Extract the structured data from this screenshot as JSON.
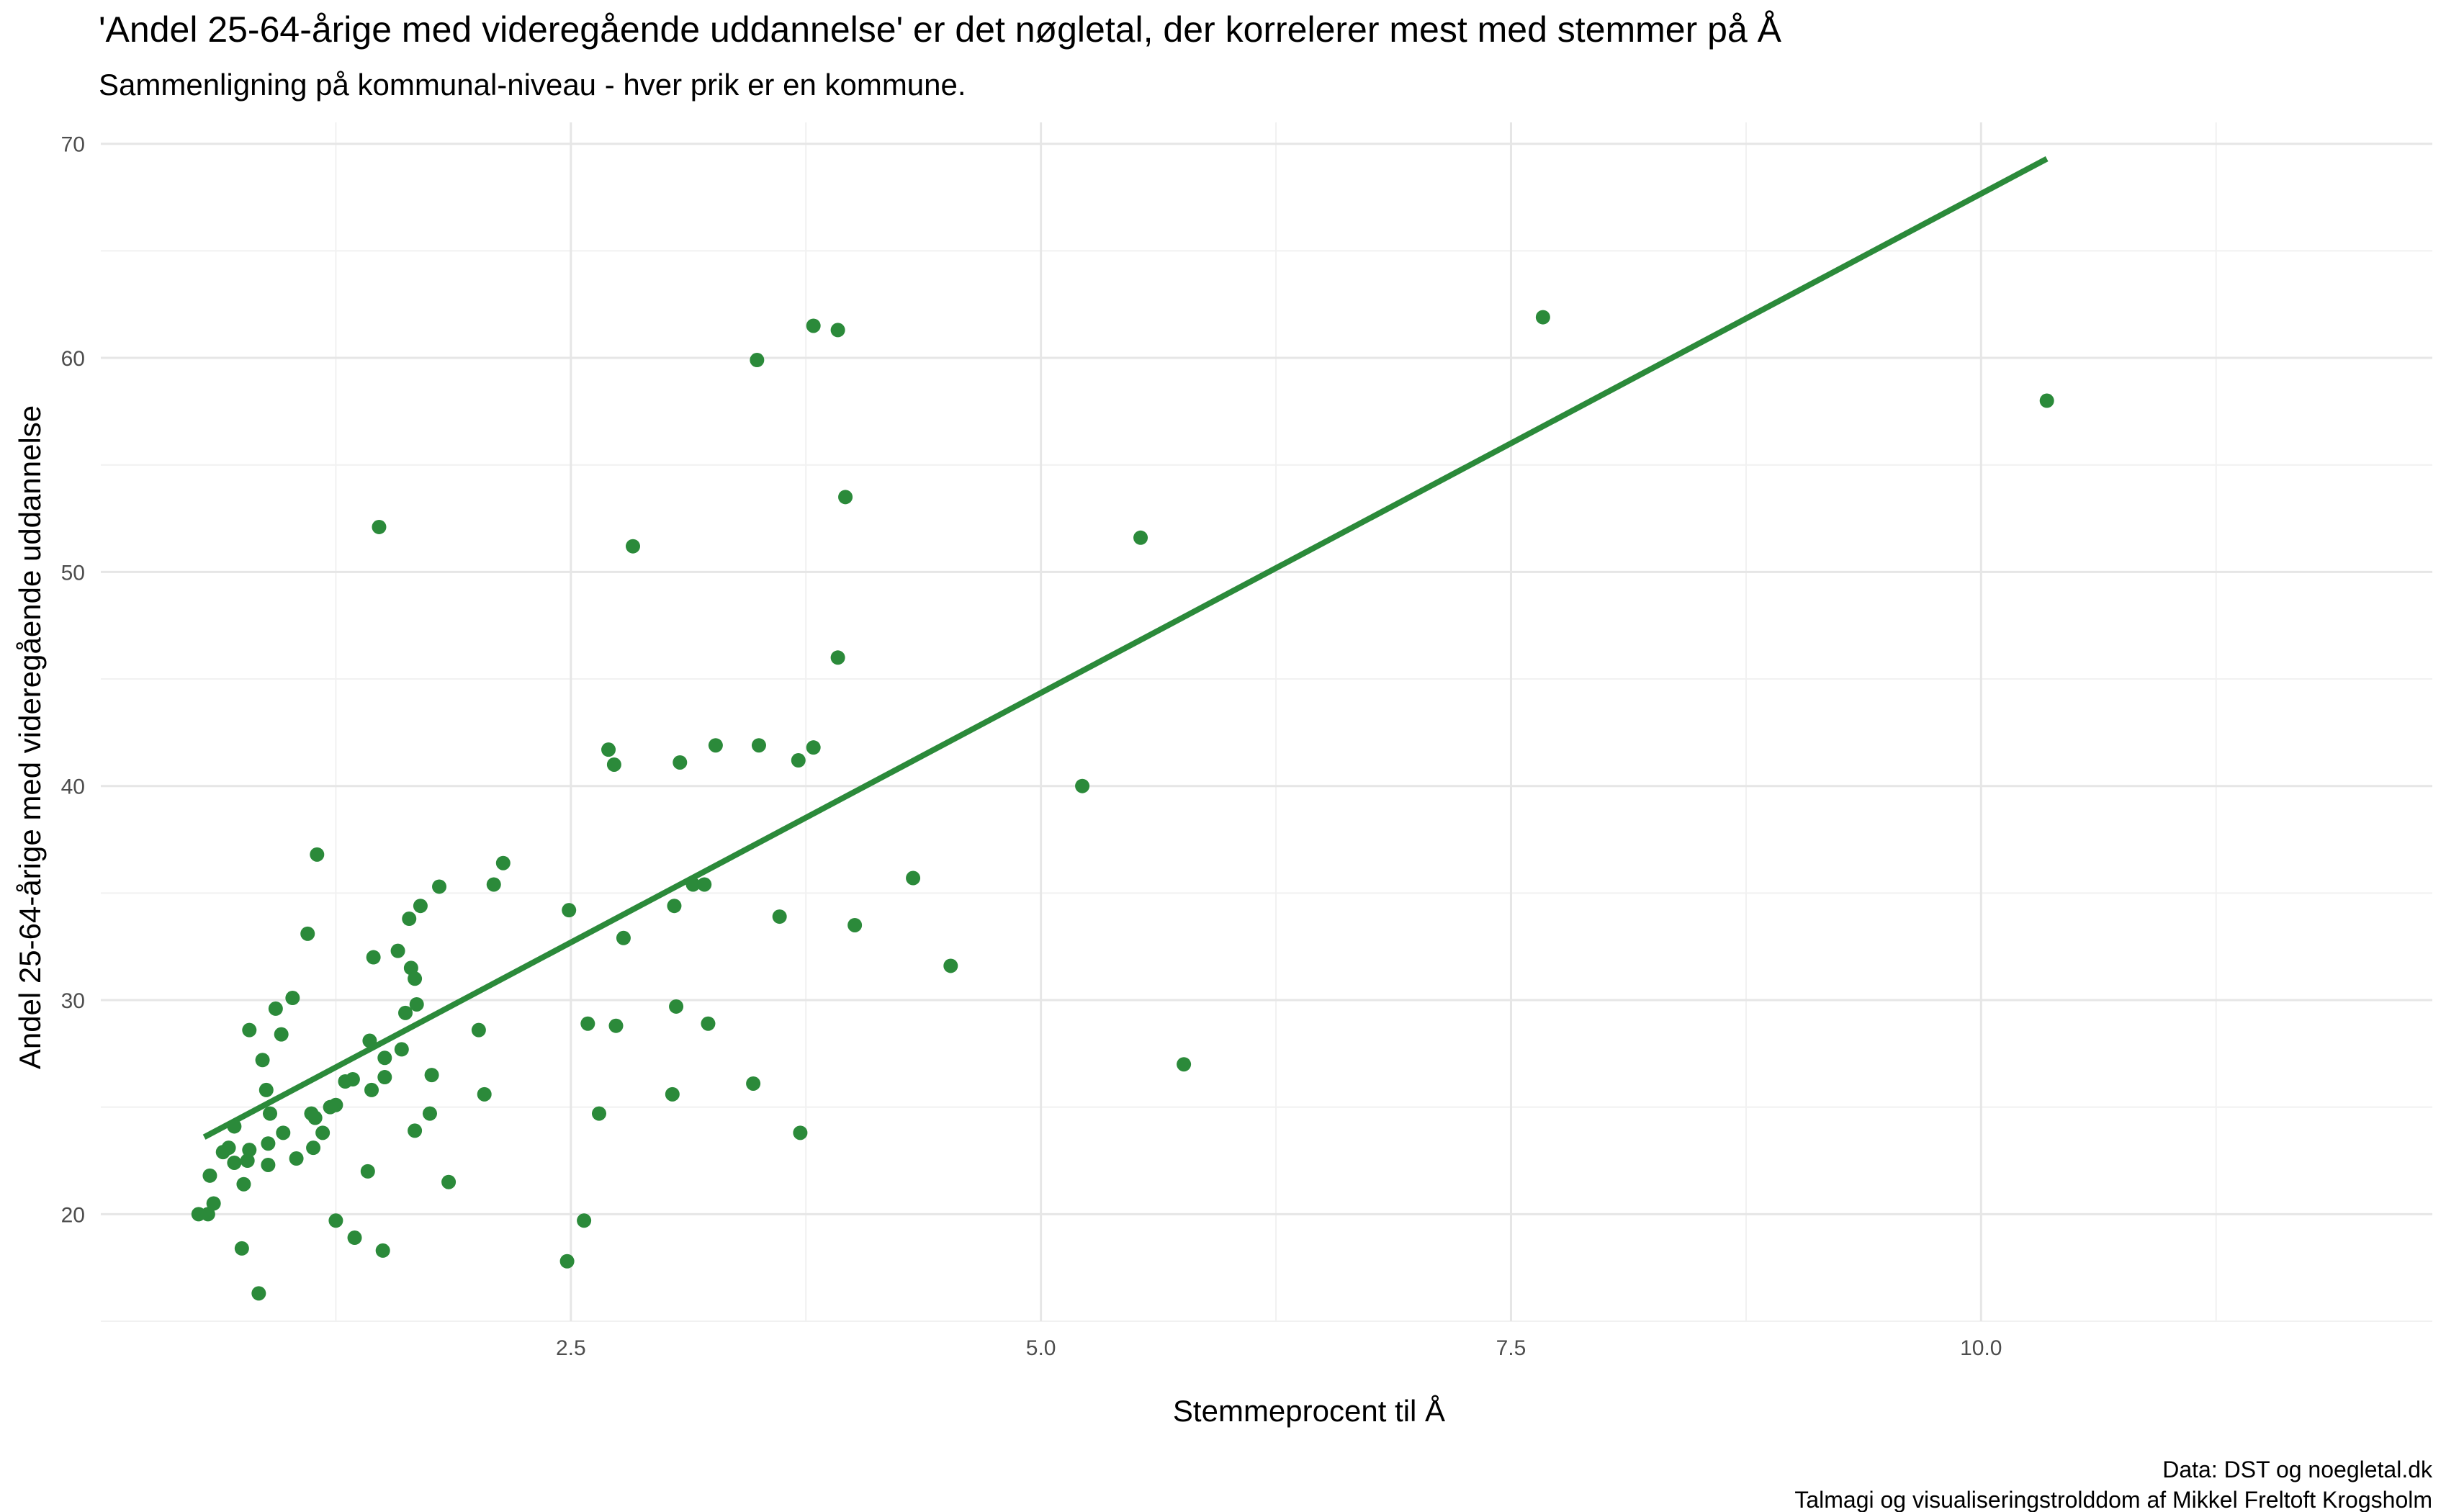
{
  "chart_data": {
    "type": "scatter",
    "title": "'Andel 25-64-årige med videregående uddannelse' er det nøgletal, der korrelerer mest med stemmer på Å",
    "subtitle": "Sammenligning på kommunal-niveau - hver prik er en kommune.",
    "xlabel": "Stemmeprocent til Å",
    "ylabel": "Andel 25-64-årige med videregående uddannelse",
    "caption": [
      "Data: DST og noegletal.dk",
      "Talmagi og visualiseringstrolddom af Mikkel Freltoft Krogsholm"
    ],
    "xlim": [
      0.0,
      12.4
    ],
    "ylim": [
      15,
      71
    ],
    "x_ticks": [
      {
        "value": 2.5,
        "label": "2.5"
      },
      {
        "value": 5.0,
        "label": "5.0"
      },
      {
        "value": 7.5,
        "label": "7.5"
      },
      {
        "value": 10.0,
        "label": "10.0"
      }
    ],
    "y_ticks": [
      {
        "value": 20,
        "label": "20"
      },
      {
        "value": 30,
        "label": "30"
      },
      {
        "value": 40,
        "label": "40"
      },
      {
        "value": 50,
        "label": "50"
      },
      {
        "value": 60,
        "label": "60"
      },
      {
        "value": 70,
        "label": "70"
      }
    ],
    "grid": true,
    "point_color": "#2b8a3a",
    "line_color": "#2b8a3a",
    "trend_line": [
      {
        "x": 0.55,
        "y": 23.6
      },
      {
        "x": 10.35,
        "y": 69.3
      }
    ],
    "points": [
      {
        "x": 0.52,
        "y": 20.0
      },
      {
        "x": 0.57,
        "y": 20.0
      },
      {
        "x": 0.6,
        "y": 20.5
      },
      {
        "x": 0.58,
        "y": 21.8
      },
      {
        "x": 0.65,
        "y": 22.9
      },
      {
        "x": 0.68,
        "y": 23.1
      },
      {
        "x": 0.71,
        "y": 22.4
      },
      {
        "x": 0.71,
        "y": 24.1
      },
      {
        "x": 0.76,
        "y": 21.4
      },
      {
        "x": 0.78,
        "y": 22.5
      },
      {
        "x": 0.79,
        "y": 23.0
      },
      {
        "x": 0.79,
        "y": 28.6
      },
      {
        "x": 0.75,
        "y": 18.4
      },
      {
        "x": 0.84,
        "y": 16.3
      },
      {
        "x": 0.86,
        "y": 27.2
      },
      {
        "x": 0.88,
        "y": 25.8
      },
      {
        "x": 0.89,
        "y": 22.3
      },
      {
        "x": 0.89,
        "y": 23.3
      },
      {
        "x": 0.9,
        "y": 24.7
      },
      {
        "x": 0.93,
        "y": 29.6
      },
      {
        "x": 0.96,
        "y": 28.4
      },
      {
        "x": 0.97,
        "y": 23.8
      },
      {
        "x": 1.02,
        "y": 30.1
      },
      {
        "x": 1.04,
        "y": 22.6
      },
      {
        "x": 1.1,
        "y": 33.1
      },
      {
        "x": 1.12,
        "y": 24.7
      },
      {
        "x": 1.13,
        "y": 23.1
      },
      {
        "x": 1.14,
        "y": 24.5
      },
      {
        "x": 1.15,
        "y": 36.8
      },
      {
        "x": 1.18,
        "y": 23.8
      },
      {
        "x": 1.22,
        "y": 25.0
      },
      {
        "x": 1.25,
        "y": 25.1
      },
      {
        "x": 1.25,
        "y": 19.7
      },
      {
        "x": 1.3,
        "y": 26.2
      },
      {
        "x": 1.34,
        "y": 26.3
      },
      {
        "x": 1.35,
        "y": 18.9
      },
      {
        "x": 1.42,
        "y": 22.0
      },
      {
        "x": 1.43,
        "y": 28.1
      },
      {
        "x": 1.44,
        "y": 25.8
      },
      {
        "x": 1.45,
        "y": 32.0
      },
      {
        "x": 1.48,
        "y": 52.1
      },
      {
        "x": 1.5,
        "y": 18.3
      },
      {
        "x": 1.51,
        "y": 27.3
      },
      {
        "x": 1.51,
        "y": 26.4
      },
      {
        "x": 1.58,
        "y": 32.3
      },
      {
        "x": 1.6,
        "y": 27.7
      },
      {
        "x": 1.62,
        "y": 29.4
      },
      {
        "x": 1.64,
        "y": 33.8
      },
      {
        "x": 1.65,
        "y": 31.5
      },
      {
        "x": 1.67,
        "y": 31.0
      },
      {
        "x": 1.67,
        "y": 23.9
      },
      {
        "x": 1.68,
        "y": 29.8
      },
      {
        "x": 1.7,
        "y": 34.4
      },
      {
        "x": 1.75,
        "y": 24.7
      },
      {
        "x": 1.76,
        "y": 26.5
      },
      {
        "x": 1.8,
        "y": 35.3
      },
      {
        "x": 1.85,
        "y": 21.5
      },
      {
        "x": 2.01,
        "y": 28.6
      },
      {
        "x": 2.04,
        "y": 25.6
      },
      {
        "x": 2.09,
        "y": 35.4
      },
      {
        "x": 2.14,
        "y": 36.4
      },
      {
        "x": 2.49,
        "y": 34.2
      },
      {
        "x": 2.48,
        "y": 17.8
      },
      {
        "x": 2.57,
        "y": 19.7
      },
      {
        "x": 2.59,
        "y": 28.9
      },
      {
        "x": 2.65,
        "y": 24.7
      },
      {
        "x": 2.7,
        "y": 41.7
      },
      {
        "x": 2.73,
        "y": 41.0
      },
      {
        "x": 2.74,
        "y": 28.8
      },
      {
        "x": 2.78,
        "y": 32.9
      },
      {
        "x": 2.83,
        "y": 51.2
      },
      {
        "x": 3.04,
        "y": 25.6
      },
      {
        "x": 3.05,
        "y": 34.4
      },
      {
        "x": 3.06,
        "y": 29.7
      },
      {
        "x": 3.08,
        "y": 41.1
      },
      {
        "x": 3.15,
        "y": 35.4
      },
      {
        "x": 3.21,
        "y": 35.4
      },
      {
        "x": 3.23,
        "y": 28.9
      },
      {
        "x": 3.27,
        "y": 41.9
      },
      {
        "x": 3.47,
        "y": 26.1
      },
      {
        "x": 3.49,
        "y": 59.9
      },
      {
        "x": 3.5,
        "y": 41.9
      },
      {
        "x": 3.61,
        "y": 33.9
      },
      {
        "x": 3.71,
        "y": 41.2
      },
      {
        "x": 3.72,
        "y": 23.8
      },
      {
        "x": 3.79,
        "y": 41.8
      },
      {
        "x": 3.79,
        "y": 61.5
      },
      {
        "x": 3.92,
        "y": 61.3
      },
      {
        "x": 3.92,
        "y": 46.0
      },
      {
        "x": 3.96,
        "y": 53.5
      },
      {
        "x": 4.01,
        "y": 33.5
      },
      {
        "x": 4.32,
        "y": 35.7
      },
      {
        "x": 4.52,
        "y": 31.6
      },
      {
        "x": 5.22,
        "y": 40.0
      },
      {
        "x": 5.53,
        "y": 51.6
      },
      {
        "x": 5.76,
        "y": 27.0
      },
      {
        "x": 7.67,
        "y": 61.9
      },
      {
        "x": 10.35,
        "y": 58.0
      }
    ]
  }
}
